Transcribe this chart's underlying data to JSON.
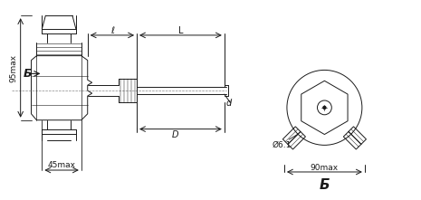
{
  "bg_color": "#ffffff",
  "line_color": "#1a1a1a",
  "dim_color": "#1a1a1a",
  "label_45max": "45max",
  "label_95max": "95max",
  "label_90max": "90max",
  "label_phi": "Ø6.1",
  "label_l": "ℓ",
  "label_L": "L",
  "label_D": "D",
  "label_d": "d",
  "label_B": "Б",
  "figsize": [
    4.65,
    2.21
  ],
  "dpi": 100
}
